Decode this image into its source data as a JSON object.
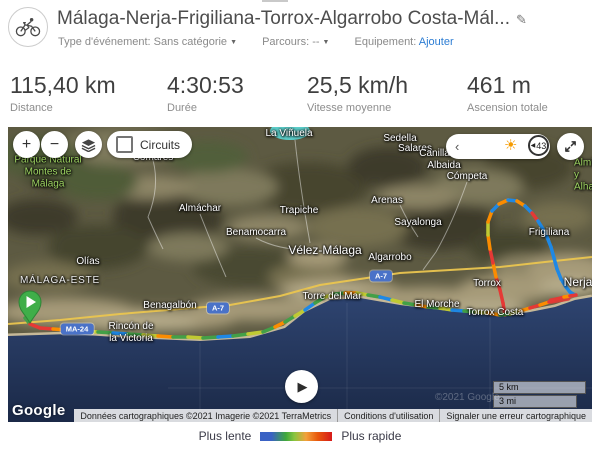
{
  "header": {
    "title": "Málaga-Nerja-Frigiliana-Torrox-Algarrobo Costa-Mál...",
    "edit_icon": "✎",
    "meta": {
      "event_type_label": "Type d'événement:",
      "event_type_value": "Sans catégorie",
      "event_caret": "▼",
      "course_label": "Parcours:",
      "course_value": "--",
      "course_caret": "▼",
      "equipment_label": "Equipement:",
      "equipment_value": "Ajouter"
    }
  },
  "stats": [
    {
      "value": "115,40 km",
      "label": "Distance"
    },
    {
      "value": "4:30:53",
      "label": "Durée"
    },
    {
      "value": "25,5 km/h",
      "label": "Vitesse moyenne"
    },
    {
      "value": "461 m",
      "label": "Ascension totale"
    }
  ],
  "map": {
    "controls": {
      "zoom_in": "+",
      "zoom_out": "−",
      "circuits_label": "Circuits",
      "slider_chevron": "‹",
      "sun_icon": "☀",
      "slider_marker": "◀",
      "slider_value": "43",
      "play_icon": "▶"
    },
    "scale": {
      "km": "5 km",
      "mi": "3 mi"
    },
    "google_logo": "Google",
    "watermark": "©2021 Google",
    "attribution": [
      "Données cartographiques ©2021 Imagerie ©2021 TerraMetrics",
      "Conditions d'utilisation",
      "Signaler une erreur cartographique"
    ],
    "route_colors": {
      "blue": "#1e88e5",
      "green": "#43a047",
      "lime": "#c0ca33",
      "orange": "#fb8c00",
      "red": "#e53935"
    },
    "marker_color": "#3fae49",
    "labels": [
      {
        "text": "Parque Natural\nMontes de\nMálaga",
        "type": "park"
      },
      {
        "text": "Comares",
        "type": "place"
      },
      {
        "text": "La Viñuela",
        "type": "place"
      },
      {
        "text": "Sedella",
        "type": "place"
      },
      {
        "text": "Salares",
        "type": "place"
      },
      {
        "text": "Canillas de\nAlbaida",
        "type": "place"
      },
      {
        "text": "Cómpeta",
        "type": "place"
      },
      {
        "text": "Almáchar",
        "type": "place"
      },
      {
        "text": "Trapiche",
        "type": "place"
      },
      {
        "text": "Arenas",
        "type": "place"
      },
      {
        "text": "Sayalonga",
        "type": "place"
      },
      {
        "text": "Benamocarra",
        "type": "place"
      },
      {
        "text": "Vélez-Málaga",
        "type": "city"
      },
      {
        "text": "Algarrobo",
        "type": "place"
      },
      {
        "text": "Olías",
        "type": "place"
      },
      {
        "text": "MÁLAGA-ESTE",
        "type": "district"
      },
      {
        "text": "Benagalbón",
        "type": "place"
      },
      {
        "text": "Rincón de\nla Victoria",
        "type": "place"
      },
      {
        "text": "Torre del Mar",
        "type": "place"
      },
      {
        "text": "El Morche",
        "type": "place"
      },
      {
        "text": "Torrox Costa",
        "type": "place"
      },
      {
        "text": "Torrox",
        "type": "place"
      },
      {
        "text": "Frigiliana",
        "type": "place"
      },
      {
        "text": "Nerja",
        "type": "city"
      },
      {
        "text": "Almijara\ny Alhama",
        "type": "park-right"
      }
    ],
    "road_badges": [
      "A-7",
      "A-7",
      "MA-24"
    ]
  },
  "legend": {
    "slow": "Plus lente",
    "fast": "Plus rapide"
  }
}
